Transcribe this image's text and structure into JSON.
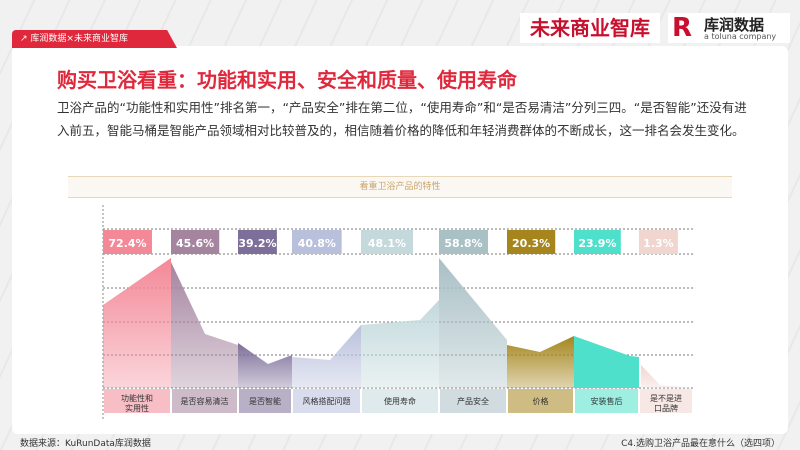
{
  "header": {
    "tab_label": "↗ 库润数据×未来商业智库",
    "logo_left": "未来商业智库",
    "logo_right": "库润数据",
    "logo_right_sub": "a toluna company"
  },
  "title": "购买卫浴看重：功能和实用、安全和质量、使用寿命",
  "body": "卫浴产品的“功能性和实用性”排名第一，“产品安全”排在第二位，“使用寿命”和“是否易清洁”分列三四。“是否智能”还没有进入前五，智能马桶是智能产品领域相对比较普及的，相信随着价格的降低和年轻消费群体的不断成长，这一排名会发生变化。",
  "footer": {
    "source": "数据来源：KuRunData库润数据",
    "question": "C4.选购卫浴产品最在意什么（选四项）"
  },
  "chart_data": {
    "type": "area",
    "title": "看重卫浴产品的特性",
    "unit": "%",
    "categories": [
      "功能性和实用性",
      "是否容易清洁",
      "是否智能",
      "风格搭配问题",
      "使用寿命",
      "产品安全",
      "价格",
      "安装售后",
      "是不是进口品牌"
    ],
    "values": [
      72.4,
      45.6,
      39.2,
      40.8,
      48.1,
      58.8,
      20.3,
      23.9,
      1.3
    ],
    "labels": [
      "72.4%",
      "45.6%",
      "39.2%",
      "40.8%",
      "48.1%",
      "58.8%",
      "20.3%",
      "23.9%",
      "1.3%"
    ],
    "colors": [
      "#f38897",
      "#a5849f",
      "#7d6f99",
      "#b9c0dc",
      "#c3d9dc",
      "#a9c0c5",
      "#a5851c",
      "#4fe0cb",
      "#f0d6cf"
    ],
    "grid": true
  }
}
